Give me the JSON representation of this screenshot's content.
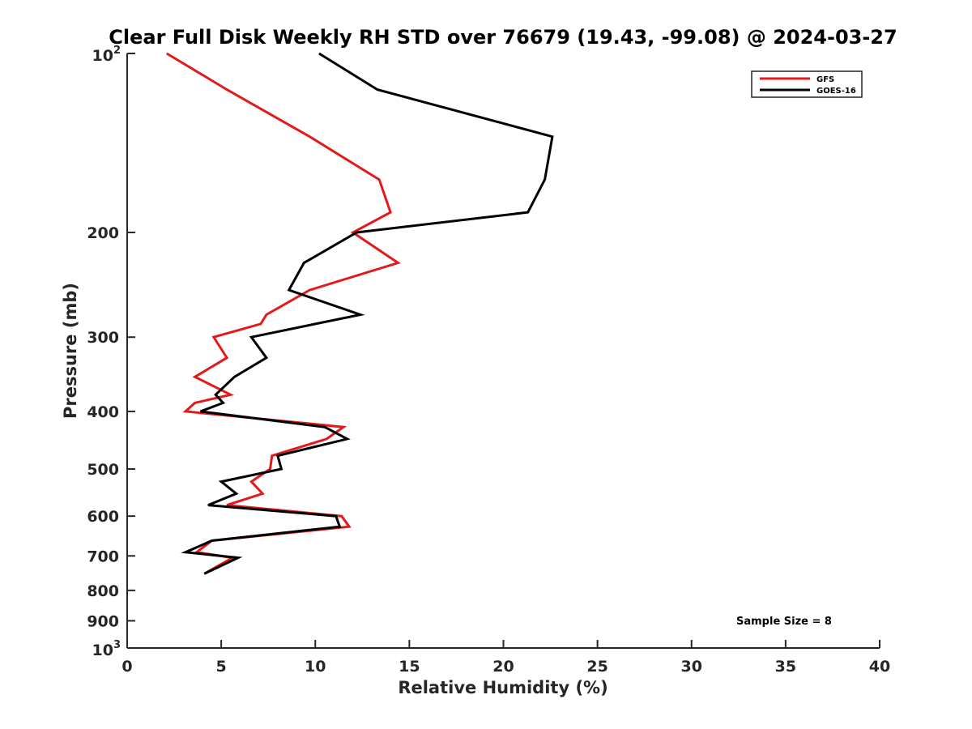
{
  "chart_data": {
    "type": "line",
    "title": "Clear Full Disk Weekly RH STD over 76679 (19.43, -99.08) @ 2024-03-27",
    "xlabel": "Relative Humidity (%)",
    "ylabel": "Pressure (mb)",
    "xlim": [
      0,
      40
    ],
    "ylim": [
      100,
      1000
    ],
    "yscale": "log",
    "y_reversed": false,
    "grid": false,
    "legend_position": "top-right",
    "x_ticks": [
      0,
      5,
      10,
      15,
      20,
      25,
      30,
      35,
      40
    ],
    "x_tick_labels": [
      "0",
      "5",
      "10",
      "15",
      "20",
      "25",
      "30",
      "35",
      "40"
    ],
    "y_ticks": [
      {
        "value": 100,
        "base": "10",
        "exp": "2"
      },
      {
        "value": 200,
        "label": "200"
      },
      {
        "value": 300,
        "label": "300"
      },
      {
        "value": 400,
        "label": "400"
      },
      {
        "value": 500,
        "label": "500"
      },
      {
        "value": 600,
        "label": "600"
      },
      {
        "value": 700,
        "label": "700"
      },
      {
        "value": 800,
        "label": "800"
      },
      {
        "value": 900,
        "label": "900"
      },
      {
        "value": 1000,
        "base": "10",
        "exp": "3"
      }
    ],
    "annotation": "Sample Size = 8",
    "series": [
      {
        "name": "GFS",
        "color": "#e31a1c",
        "points": [
          {
            "x": 2.1,
            "y": 100
          },
          {
            "x": 5.3,
            "y": 115
          },
          {
            "x": 9.7,
            "y": 138
          },
          {
            "x": 13.4,
            "y": 163
          },
          {
            "x": 14.0,
            "y": 185
          },
          {
            "x": 12.0,
            "y": 200
          },
          {
            "x": 14.4,
            "y": 225
          },
          {
            "x": 9.7,
            "y": 250
          },
          {
            "x": 7.4,
            "y": 275
          },
          {
            "x": 7.1,
            "y": 285
          },
          {
            "x": 4.6,
            "y": 300
          },
          {
            "x": 5.3,
            "y": 325
          },
          {
            "x": 3.6,
            "y": 350
          },
          {
            "x": 5.5,
            "y": 375
          },
          {
            "x": 3.6,
            "y": 387
          },
          {
            "x": 3.1,
            "y": 400
          },
          {
            "x": 11.5,
            "y": 425
          },
          {
            "x": 10.6,
            "y": 445
          },
          {
            "x": 7.7,
            "y": 475
          },
          {
            "x": 7.6,
            "y": 500
          },
          {
            "x": 6.6,
            "y": 525
          },
          {
            "x": 7.2,
            "y": 550
          },
          {
            "x": 5.3,
            "y": 575
          },
          {
            "x": 11.4,
            "y": 600
          },
          {
            "x": 11.8,
            "y": 625
          },
          {
            "x": 4.5,
            "y": 660
          },
          {
            "x": 3.7,
            "y": 690
          },
          {
            "x": 5.6,
            "y": 705
          },
          {
            "x": 4.1,
            "y": 750
          }
        ]
      },
      {
        "name": "GOES-16",
        "color": "#000000",
        "points": [
          {
            "x": 10.2,
            "y": 100
          },
          {
            "x": 13.3,
            "y": 115
          },
          {
            "x": 22.6,
            "y": 138
          },
          {
            "x": 22.2,
            "y": 163
          },
          {
            "x": 21.3,
            "y": 185
          },
          {
            "x": 12.2,
            "y": 200
          },
          {
            "x": 9.4,
            "y": 225
          },
          {
            "x": 8.6,
            "y": 250
          },
          {
            "x": 12.4,
            "y": 275
          },
          {
            "x": 10.0,
            "y": 285
          },
          {
            "x": 6.6,
            "y": 300
          },
          {
            "x": 7.4,
            "y": 325
          },
          {
            "x": 5.7,
            "y": 350
          },
          {
            "x": 4.7,
            "y": 375
          },
          {
            "x": 5.1,
            "y": 387
          },
          {
            "x": 3.9,
            "y": 400
          },
          {
            "x": 10.5,
            "y": 425
          },
          {
            "x": 11.7,
            "y": 445
          },
          {
            "x": 8.0,
            "y": 475
          },
          {
            "x": 8.2,
            "y": 500
          },
          {
            "x": 5.0,
            "y": 525
          },
          {
            "x": 5.8,
            "y": 550
          },
          {
            "x": 4.3,
            "y": 575
          },
          {
            "x": 11.1,
            "y": 600
          },
          {
            "x": 11.3,
            "y": 625
          },
          {
            "x": 4.5,
            "y": 660
          },
          {
            "x": 3.1,
            "y": 690
          },
          {
            "x": 5.9,
            "y": 705
          },
          {
            "x": 4.1,
            "y": 750
          }
        ]
      }
    ]
  }
}
